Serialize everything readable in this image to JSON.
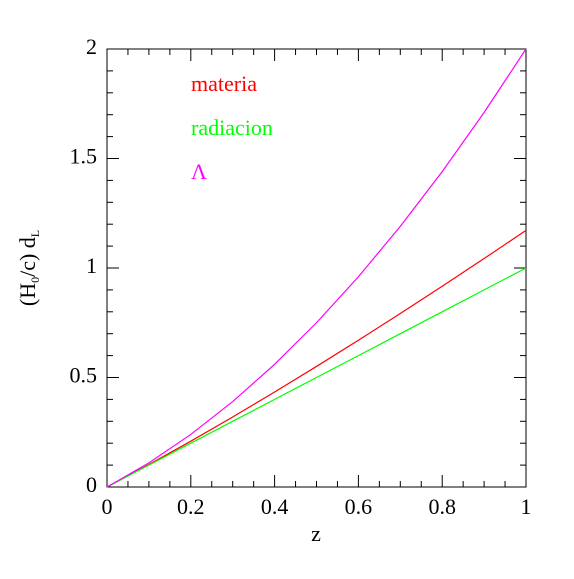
{
  "chart_data": {
    "type": "line",
    "xlabel": "z",
    "ylabel": [
      "(H",
      "0",
      "/c)  d",
      "L"
    ],
    "x": [
      0,
      0.1,
      0.2,
      0.3,
      0.4,
      0.5,
      0.6,
      0.7,
      0.8,
      0.9,
      1
    ],
    "series": [
      {
        "name": "materia",
        "color": "#ff0000",
        "values": [
          0,
          0.1024,
          0.2091,
          0.3196,
          0.4336,
          0.5505,
          0.6702,
          0.7923,
          0.9167,
          1.0432,
          1.1716
        ]
      },
      {
        "name": "radiacion",
        "color": "#00ff00",
        "values": [
          0,
          0.1,
          0.2,
          0.3,
          0.4,
          0.5,
          0.6,
          0.7,
          0.8,
          0.9,
          1
        ]
      },
      {
        "name": "Λ",
        "color": "#ff00ff",
        "values": [
          0,
          0.11,
          0.24,
          0.39,
          0.56,
          0.75,
          0.96,
          1.19,
          1.44,
          1.71,
          2
        ]
      }
    ],
    "xlim": [
      0,
      1
    ],
    "ylim": [
      0,
      2
    ],
    "xticks": [
      0,
      0.2,
      0.4,
      0.6,
      0.8,
      1
    ],
    "yticks": [
      0,
      0.5,
      1,
      1.5,
      2
    ],
    "xminorticks": [
      0.05,
      0.1,
      0.15,
      0.25,
      0.3,
      0.35,
      0.45,
      0.5,
      0.55,
      0.65,
      0.7,
      0.75,
      0.85,
      0.9,
      0.95
    ],
    "yminorticks": [
      0.1,
      0.2,
      0.3,
      0.4,
      0.6,
      0.7,
      0.8,
      0.9,
      1.1,
      1.2,
      1.3,
      1.4,
      1.6,
      1.7,
      1.8,
      1.9
    ],
    "grid": false
  }
}
